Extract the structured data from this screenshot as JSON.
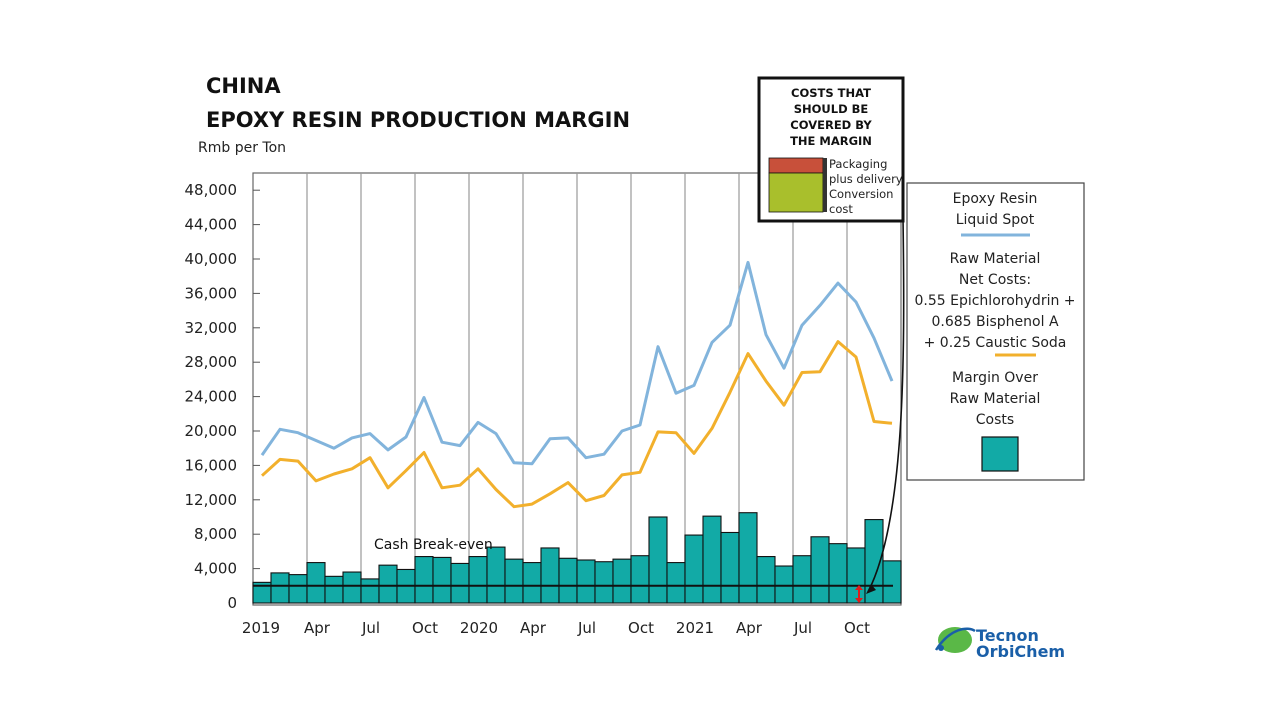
{
  "chart_data": {
    "type": "bar",
    "title_line1": "CHINA",
    "title_line2": "EPOXY RESIN PRODUCTION MARGIN",
    "ylabel": "Rmb per Ton",
    "ylim": [
      0,
      50000
    ],
    "y_ticks": [
      0,
      4000,
      8000,
      12000,
      16000,
      20000,
      24000,
      28000,
      32000,
      36000,
      40000,
      44000,
      48000
    ],
    "y_tick_labels": [
      "0",
      "4,000",
      "8,000",
      "12,000",
      "16,000",
      "20,000",
      "24,000",
      "28,000",
      "32,000",
      "36,000",
      "40,000",
      "44,000",
      "48,000"
    ],
    "x_tick_labels": [
      {
        "index": 0,
        "label": "2019"
      },
      {
        "index": 3,
        "label": "Apr"
      },
      {
        "index": 6,
        "label": "Jul"
      },
      {
        "index": 9,
        "label": "Oct"
      },
      {
        "index": 12,
        "label": "2020"
      },
      {
        "index": 15,
        "label": "Apr"
      },
      {
        "index": 18,
        "label": "Jul"
      },
      {
        "index": 21,
        "label": "Oct"
      },
      {
        "index": 24,
        "label": "2021"
      },
      {
        "index": 27,
        "label": "Apr"
      },
      {
        "index": 30,
        "label": "Jul"
      },
      {
        "index": 33,
        "label": "Oct"
      }
    ],
    "months": 36,
    "series": [
      {
        "name": "Epoxy Resin Liquid Spot",
        "type": "line",
        "color": "#82b4dc",
        "values": [
          17200,
          20200,
          19800,
          18900,
          18000,
          19200,
          19700,
          17800,
          19300,
          23900,
          18700,
          18300,
          21000,
          19700,
          16300,
          16200,
          19100,
          19200,
          16900,
          17300,
          20000,
          20700,
          29800,
          24400,
          25300,
          30300,
          32300,
          39600,
          31200,
          27300,
          32300,
          34600,
          37200,
          35000,
          30800,
          25800
        ]
      },
      {
        "name": "Raw Material Net Costs",
        "type": "line",
        "color": "#f2b02c",
        "values": [
          14800,
          16700,
          16500,
          14200,
          15000,
          15600,
          16900,
          13400,
          15400,
          17500,
          13400,
          13700,
          15600,
          13200,
          11200,
          11500,
          12700,
          14000,
          11900,
          12500,
          14900,
          15200,
          19900,
          19800,
          17400,
          20300,
          24500,
          29000,
          25800,
          23000,
          26800,
          26900,
          30400,
          28600,
          21100,
          20900
        ]
      },
      {
        "name": "Margin Over Raw Material Costs",
        "type": "bar",
        "color": "#12aaa6",
        "values": [
          2400,
          3500,
          3300,
          4700,
          3100,
          3600,
          2800,
          4400,
          3900,
          5400,
          5300,
          4600,
          5400,
          6500,
          5100,
          4700,
          6400,
          5200,
          5000,
          4800,
          5100,
          5500,
          10000,
          4700,
          7900,
          10100,
          8200,
          10500,
          5400,
          4300,
          5500,
          7700,
          6900,
          6400,
          9700,
          4900
        ]
      }
    ],
    "cash_breakeven_value": 2000,
    "cash_breakeven_label": "Cash Break-even",
    "costs_box": {
      "title_lines": [
        "COSTS THAT",
        "SHOULD BE",
        "COVERED BY",
        "THE MARGIN"
      ],
      "items": [
        {
          "label_lines": [
            "Packaging",
            "plus delivery"
          ],
          "color": "#c8503a"
        },
        {
          "label_lines": [
            "Conversion",
            "cost"
          ],
          "color": "#a9bf2c"
        }
      ]
    },
    "legend": {
      "epoxy_lines": [
        "Epoxy Resin",
        "Liquid Spot"
      ],
      "raw_lines": [
        "Raw Material",
        "Net Costs:",
        "0.55 Epichlorohydrin +",
        "0.685 Bisphenol A",
        "+ 0.25 Caustic Soda"
      ],
      "margin_lines": [
        "Margin Over",
        "Raw Material",
        "Costs"
      ]
    }
  },
  "logo": {
    "line1": "Tecnon",
    "line2": "OrbiChem"
  },
  "colors": {
    "bar": "#12aaa6",
    "epoxy": "#82b4dc",
    "raw": "#f2b02c",
    "grid": "#9a9a9a",
    "plot_bg": "#ffffff"
  }
}
